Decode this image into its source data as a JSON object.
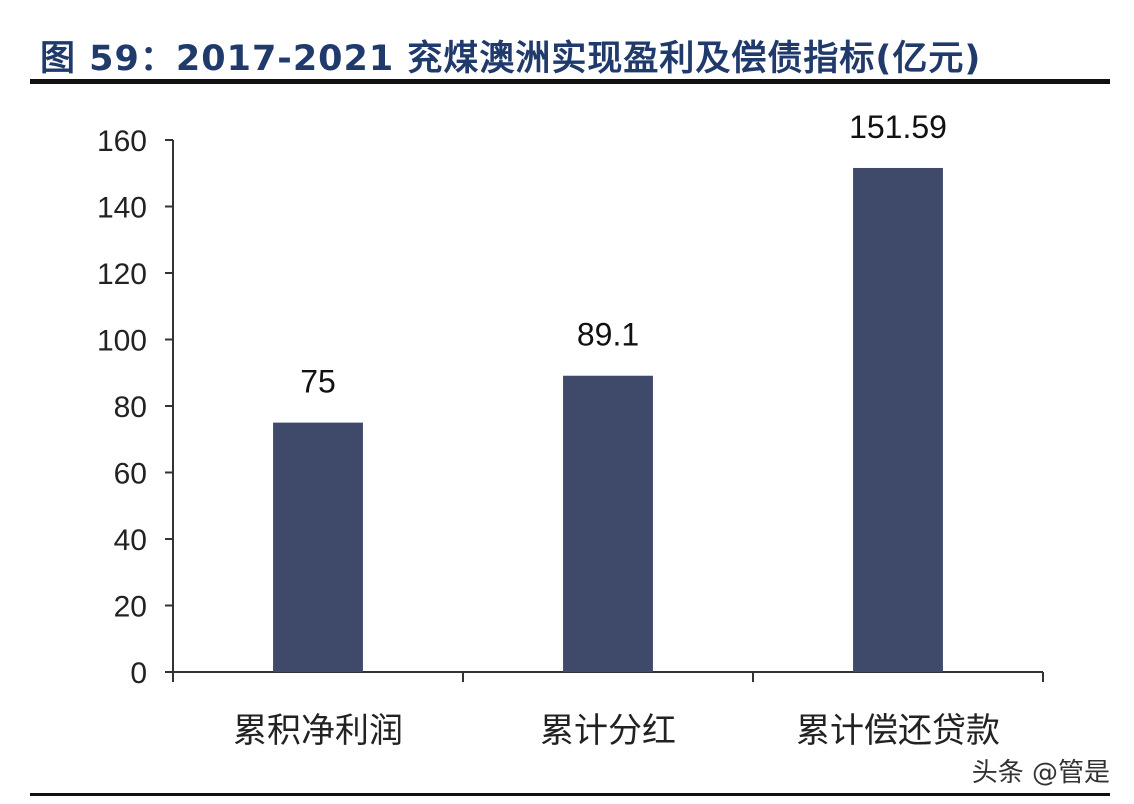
{
  "title": "图 59：2017-2021 兖煤澳洲实现盈利及偿债指标(亿元)",
  "watermark": "头条 @管是",
  "colors": {
    "bar": "#3f4a6b",
    "axis": "#333333",
    "title": "#1f3a6b"
  },
  "chart_data": {
    "type": "bar",
    "title": "图 59：2017-2021 兖煤澳洲实现盈利及偿债指标(亿元)",
    "xlabel": "",
    "ylabel": "",
    "categories": [
      "累积净利润",
      "累计分红",
      "累计偿还贷款"
    ],
    "values": [
      75,
      89.1,
      151.59
    ],
    "data_labels": [
      "75",
      "89.1",
      "151.59"
    ],
    "ylim": [
      0,
      160
    ],
    "yticks": [
      0,
      20,
      40,
      60,
      80,
      100,
      120,
      140,
      160
    ],
    "grid": false,
    "legend": "none"
  }
}
